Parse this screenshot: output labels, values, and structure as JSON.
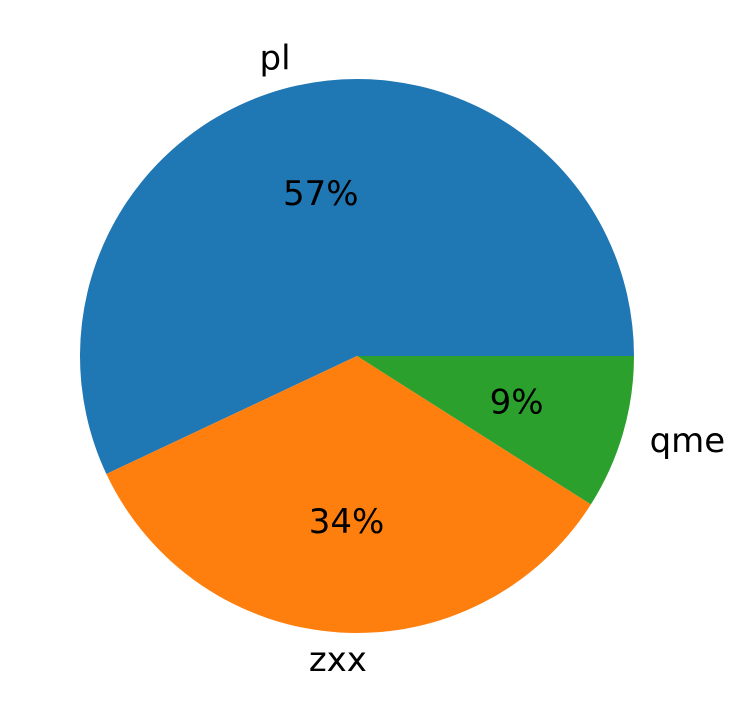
{
  "chart_data": {
    "type": "pie",
    "slices": [
      {
        "label": "pl",
        "value": 57,
        "pct_label": "57%",
        "color": "#1f77b4"
      },
      {
        "label": "zxx",
        "value": 34,
        "pct_label": "34%",
        "color": "#ff7f0e"
      },
      {
        "label": "qme",
        "value": 9,
        "pct_label": "9%",
        "color": "#2ca02c"
      }
    ],
    "start_angle_deg": 0,
    "direction": "counterclockwise",
    "title": "",
    "legend": "none"
  }
}
